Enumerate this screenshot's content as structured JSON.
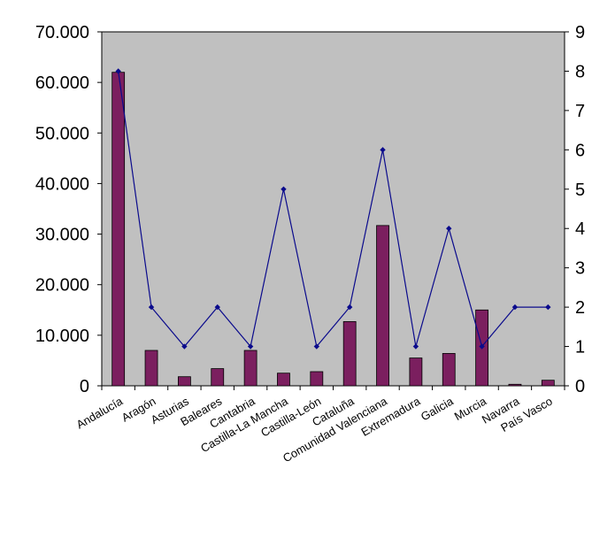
{
  "chart_data": {
    "type": "bar",
    "title": "",
    "xlabel": "",
    "ylabel": "",
    "y2label": "",
    "categories": [
      "Andalucía",
      "Aragón",
      "Asturias",
      "Baleares",
      "Cantabria",
      "Castilla-La Mancha",
      "Castilla-León",
      "Cataluña",
      "Comunidad Valenciana",
      "Extremadura",
      "Galicia",
      "Murcia",
      "Navarra",
      "País Vasco"
    ],
    "series": [
      {
        "name": "",
        "type": "bar",
        "axis": "left",
        "color": "#7b1f5f",
        "values": [
          62000,
          7000,
          1800,
          3400,
          7000,
          2500,
          2800,
          12700,
          31700,
          5500,
          6400,
          15000,
          300,
          1100
        ]
      },
      {
        "name": "",
        "type": "line",
        "axis": "right",
        "color": "#0a0a8c",
        "values": [
          8,
          2,
          1,
          2,
          1,
          5,
          1,
          2,
          6,
          1,
          4,
          1,
          2,
          2
        ]
      }
    ],
    "y_left": {
      "min": 0,
      "max": 70000,
      "ticks": [
        "0",
        "10.000",
        "20.000",
        "30.000",
        "40.000",
        "50.000",
        "60.000",
        "70.000"
      ]
    },
    "y_right": {
      "min": 0,
      "max": 9,
      "ticks": [
        "0",
        "1",
        "2",
        "3",
        "4",
        "5",
        "6",
        "7",
        "8",
        "9"
      ]
    },
    "plot_background": "#c0c0c0",
    "grid": false,
    "legend": "none"
  }
}
